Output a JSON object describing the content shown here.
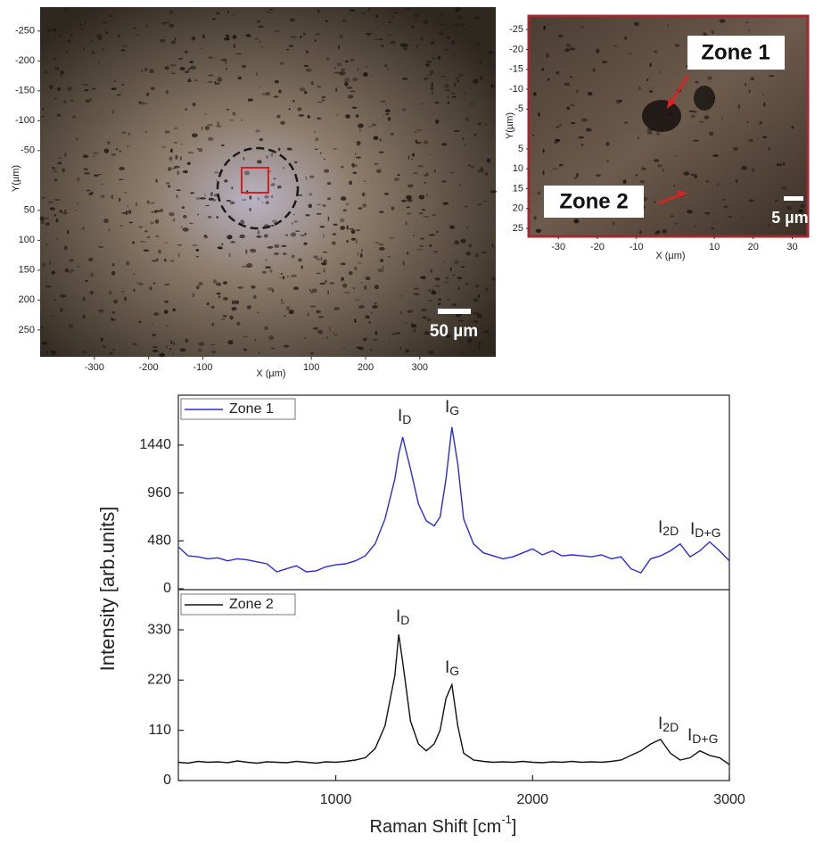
{
  "chart_data": [
    {
      "type": "image",
      "xlabel": "X (µm)",
      "ylabel": "Y(µm)",
      "scale_bar": "50 µm",
      "xlim": [
        -400,
        440
      ],
      "ylim": [
        -290,
        295
      ],
      "y_inverted": true,
      "xticks": [
        -300,
        -200,
        -100,
        100,
        200,
        300
      ],
      "yticks": [
        -250,
        -200,
        -150,
        -100,
        -50,
        50,
        100,
        150,
        200,
        250
      ]
    },
    {
      "type": "image",
      "xlabel": "X (µm)",
      "ylabel": "Y(µm)",
      "scale_bar": "5 µm",
      "zone_labels": [
        "Zone 1",
        "Zone 2"
      ],
      "xlim": [
        -37.6,
        34
      ],
      "ylim": [
        -28.4,
        27
      ],
      "y_inverted": true,
      "xticks": [
        -30,
        -20,
        -10,
        10,
        20,
        30
      ],
      "yticks": [
        -25,
        -20,
        -15,
        -10,
        -5,
        5,
        10,
        15,
        20,
        25
      ]
    },
    {
      "type": "line",
      "ylabel": "Intensity [arb.units]",
      "x": [
        200,
        250,
        300,
        350,
        400,
        450,
        500,
        550,
        600,
        650,
        700,
        750,
        800,
        850,
        900,
        950,
        1000,
        1050,
        1100,
        1150,
        1200,
        1250,
        1300,
        1320,
        1340,
        1380,
        1420,
        1460,
        1500,
        1530,
        1560,
        1590,
        1620,
        1650,
        1700,
        1750,
        1800,
        1850,
        1900,
        1950,
        2000,
        2050,
        2100,
        2150,
        2200,
        2250,
        2300,
        2350,
        2400,
        2450,
        2500,
        2550,
        2600,
        2650,
        2700,
        2750,
        2800,
        2850,
        2900,
        2950,
        3000
      ],
      "series": [
        {
          "name": "Zone 1",
          "color": "#2b2bd6",
          "values": [
            420,
            330,
            320,
            300,
            310,
            280,
            300,
            290,
            270,
            250,
            170,
            200,
            230,
            170,
            180,
            220,
            240,
            250,
            280,
            330,
            450,
            700,
            1100,
            1350,
            1520,
            1200,
            850,
            680,
            630,
            720,
            1100,
            1620,
            1250,
            700,
            450,
            360,
            330,
            300,
            320,
            360,
            400,
            340,
            380,
            330,
            340,
            330,
            320,
            340,
            300,
            320,
            200,
            160,
            300,
            330,
            380,
            450,
            320,
            380,
            470,
            380,
            280
          ]
        }
      ],
      "annotations": [
        {
          "text": "I",
          "sub": "D"
        },
        {
          "text": "I",
          "sub": "G"
        },
        {
          "text": "I",
          "sub": "2D"
        },
        {
          "text": "I",
          "sub": "D+G"
        }
      ],
      "xlim": [
        200,
        3000
      ],
      "ylim": [
        0,
        1940
      ],
      "yticks": [
        0,
        480,
        960,
        1440
      ]
    },
    {
      "type": "line",
      "xlabel": {
        "text": "Raman Shift [cm",
        "sup": "-1",
        "end": "]"
      },
      "x": [
        200,
        250,
        300,
        350,
        400,
        450,
        500,
        550,
        600,
        650,
        700,
        750,
        800,
        850,
        900,
        950,
        1000,
        1050,
        1100,
        1150,
        1200,
        1250,
        1300,
        1320,
        1340,
        1380,
        1420,
        1460,
        1500,
        1530,
        1560,
        1590,
        1620,
        1650,
        1700,
        1750,
        1800,
        1850,
        1900,
        1950,
        2000,
        2050,
        2100,
        2150,
        2200,
        2250,
        2300,
        2350,
        2400,
        2450,
        2500,
        2550,
        2600,
        2650,
        2700,
        2750,
        2800,
        2850,
        2900,
        2950,
        3000
      ],
      "series": [
        {
          "name": "Zone 2",
          "color": "#111111",
          "values": [
            40,
            38,
            42,
            40,
            41,
            39,
            43,
            40,
            38,
            41,
            40,
            39,
            42,
            40,
            38,
            41,
            40,
            42,
            45,
            50,
            70,
            120,
            230,
            320,
            260,
            130,
            80,
            65,
            80,
            110,
            180,
            210,
            120,
            60,
            45,
            42,
            40,
            41,
            40,
            42,
            40,
            39,
            41,
            40,
            42,
            40,
            41,
            40,
            42,
            45,
            55,
            65,
            80,
            90,
            60,
            45,
            50,
            65,
            55,
            50,
            35
          ]
        }
      ],
      "annotations": [
        {
          "text": "I",
          "sub": "D"
        },
        {
          "text": "I",
          "sub": "G"
        },
        {
          "text": "I",
          "sub": "2D"
        },
        {
          "text": "I",
          "sub": "D+G"
        }
      ],
      "xlim": [
        200,
        3000
      ],
      "ylim": [
        0,
        416
      ],
      "xticks": [
        1000,
        2000,
        3000
      ],
      "yticks": [
        0,
        110,
        220,
        330
      ]
    }
  ]
}
